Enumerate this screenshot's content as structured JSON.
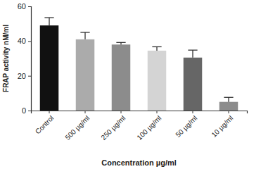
{
  "chart_data": {
    "type": "bar",
    "x_label": "Concentration µg/ml",
    "y_label": "FRAP activity nM/ml",
    "categories": [
      "Control",
      "500 µg/ml",
      "250 µg/ml",
      "100 µg/ml",
      "50 µg/ml",
      "10 µg/ml"
    ],
    "values": [
      49,
      41,
      38,
      34.5,
      30.5,
      5
    ],
    "errors": [
      4.5,
      4,
      1.2,
      2.2,
      4.3,
      2.6
    ],
    "colors": [
      "#111111",
      "#ababab",
      "#8c8c8c",
      "#d4d4d4",
      "#666666",
      "#8c8c8c"
    ],
    "ylim": [
      0,
      60
    ],
    "yticks": [
      0,
      20,
      40,
      60
    ],
    "grid": false
  }
}
